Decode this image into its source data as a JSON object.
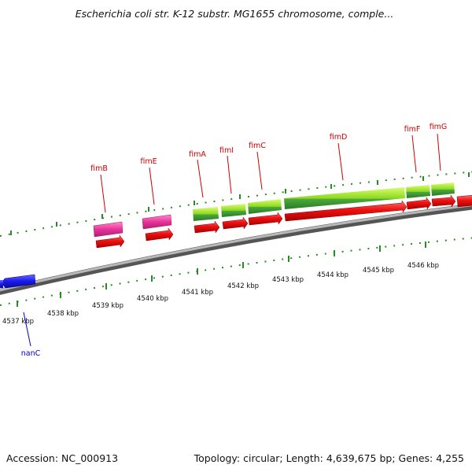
{
  "title": "Escherichia coli str. K-12 substr. MG1655 chromosome, comple...",
  "footer": {
    "accession": "Accession: NC_000913",
    "summary": "Topology: circular; Length: 4,639,675 bp; Genes: 4,255"
  },
  "ticks": [
    "4537 kbp",
    "4538 kbp",
    "4539 kbp",
    "4540 kbp",
    "4541 kbp",
    "4542 kbp",
    "4543 kbp",
    "4544 kbp",
    "4545 kbp",
    "4546 kbp"
  ],
  "genes": [
    {
      "name": "fimB",
      "color": "#cc0000"
    },
    {
      "name": "fimE",
      "color": "#cc0000"
    },
    {
      "name": "fimA",
      "color": "#cc0000"
    },
    {
      "name": "fimI",
      "color": "#cc0000"
    },
    {
      "name": "fimC",
      "color": "#cc0000"
    },
    {
      "name": "fimD",
      "color": "#cc0000"
    },
    {
      "name": "fimF",
      "color": "#cc0000"
    },
    {
      "name": "fimG",
      "color": "#cc0000"
    },
    {
      "name": "nanC",
      "color": "#0000cc"
    }
  ],
  "colors": {
    "backbone": "#8a8a8a",
    "cds_forward": "#ee1111",
    "gene_magenta": "#e8339a",
    "gene_green": "#8ed81f",
    "gene_green_dark": "#2f8f2f",
    "reverse": "#1a1aee",
    "tick": "#2a8a2a"
  }
}
